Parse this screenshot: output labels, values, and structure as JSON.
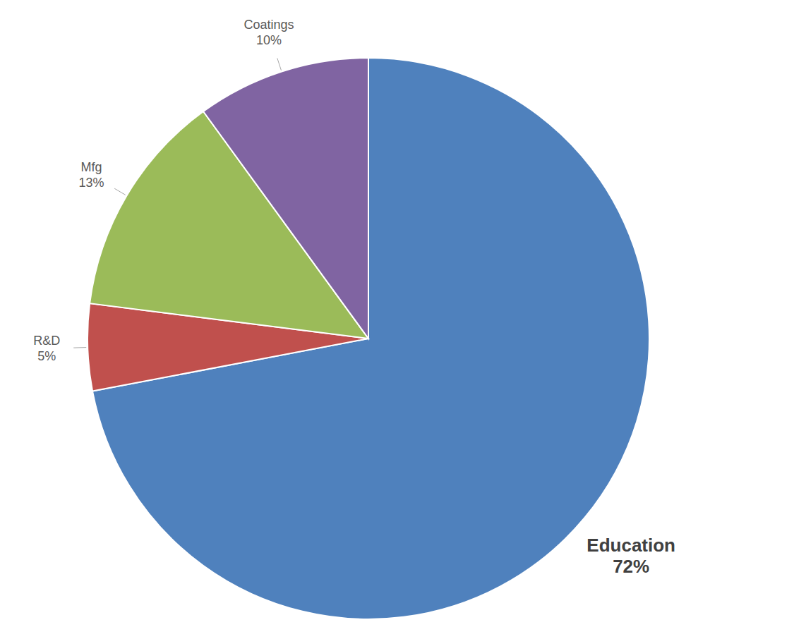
{
  "chart_data": {
    "type": "pie",
    "categories": [
      "Education",
      "R&D",
      "Mfg",
      "Coatings"
    ],
    "values": [
      72,
      5,
      13,
      10
    ],
    "value_labels": [
      "72%",
      "5%",
      "13%",
      "10%"
    ],
    "colors": [
      "#4f81bd",
      "#c0504d",
      "#9bbb59",
      "#8064a2"
    ],
    "data_labels": true
  }
}
